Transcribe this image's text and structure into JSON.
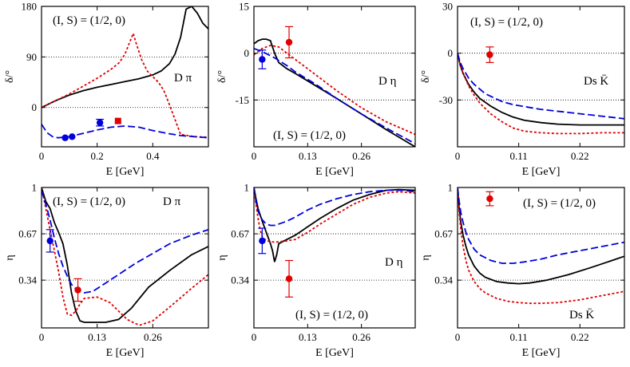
{
  "chart_data": [
    {
      "type": "line",
      "annotation": "(I, S) = (1/2, 0)",
      "channel": "D π",
      "xlabel": "E [GeV]",
      "ylabel": "δ/°",
      "xlim": [
        0,
        0.6
      ],
      "ylim": [
        -70,
        180
      ],
      "xticks": [
        0,
        0.2,
        0.4
      ],
      "yticks": [
        0,
        90,
        180
      ],
      "hlines": [
        0,
        90
      ],
      "series": [
        {
          "color": "#000000",
          "style": "solid",
          "x": [
            0,
            0.05,
            0.1,
            0.15,
            0.2,
            0.25,
            0.3,
            0.35,
            0.4,
            0.43,
            0.46,
            0.48,
            0.5,
            0.52,
            0.54,
            0.56,
            0.58,
            0.6
          ],
          "y": [
            0,
            12,
            22,
            30,
            36,
            41,
            46,
            51,
            58,
            65,
            78,
            95,
            125,
            175,
            180,
            168,
            150,
            140
          ]
        },
        {
          "color": "#e00000",
          "style": "dotted",
          "x": [
            0,
            0.05,
            0.1,
            0.15,
            0.2,
            0.25,
            0.28,
            0.3,
            0.32,
            0.33,
            0.34,
            0.36,
            0.38,
            0.4,
            0.42,
            0.44,
            0.46,
            0.5,
            0.55,
            0.6
          ],
          "y": [
            0,
            12,
            24,
            38,
            52,
            68,
            80,
            95,
            120,
            132,
            115,
            85,
            65,
            55,
            45,
            30,
            5,
            -48,
            -52,
            -53
          ]
        },
        {
          "color": "#0000dd",
          "style": "dashed",
          "x": [
            0,
            0.02,
            0.04,
            0.06,
            0.08,
            0.1,
            0.15,
            0.2,
            0.25,
            0.3,
            0.35,
            0.4,
            0.45,
            0.5,
            0.55,
            0.6
          ],
          "y": [
            -30,
            -45,
            -52,
            -54,
            -53,
            -52,
            -46,
            -40,
            -35,
            -33,
            -35,
            -41,
            -46,
            -50,
            -52,
            -54
          ]
        }
      ],
      "points": [
        {
          "color": "#0000dd",
          "marker": "circle",
          "x": 0.085,
          "y": -54,
          "err": 0
        },
        {
          "color": "#0000dd",
          "marker": "circle",
          "x": 0.11,
          "y": -52,
          "err": 0
        },
        {
          "color": "#0000dd",
          "marker": "circle",
          "x": 0.21,
          "y": -27,
          "err": 6
        },
        {
          "color": "#e00000",
          "marker": "square",
          "x": 0.275,
          "y": -24,
          "err": 0
        }
      ]
    },
    {
      "type": "line",
      "annotation": "(I, S) = (1/2, 0)",
      "channel": "D η",
      "xlabel": "E [GeV]",
      "ylabel": "δ/°",
      "xlim": [
        0,
        0.39
      ],
      "ylim": [
        -30,
        15
      ],
      "xticks": [
        0,
        0.13,
        0.26
      ],
      "yticks": [
        -15,
        0,
        15
      ],
      "hlines": [
        0,
        -15
      ],
      "series": [
        {
          "color": "#000000",
          "style": "solid",
          "x": [
            0,
            0.01,
            0.02,
            0.03,
            0.04,
            0.05,
            0.06,
            0.08,
            0.1,
            0.15,
            0.2,
            0.26,
            0.32,
            0.39
          ],
          "y": [
            3,
            4,
            4.5,
            4.5,
            4,
            0,
            -3,
            -5,
            -6.5,
            -10.5,
            -14.5,
            -19.5,
            -24.5,
            -30
          ]
        },
        {
          "color": "#e00000",
          "style": "dotted",
          "x": [
            0,
            0.02,
            0.04,
            0.06,
            0.08,
            0.1,
            0.15,
            0.2,
            0.26,
            0.32,
            0.39
          ],
          "y": [
            -0.5,
            1.5,
            2.5,
            2,
            0,
            -2,
            -7,
            -12,
            -17.5,
            -22,
            -26
          ]
        },
        {
          "color": "#0000dd",
          "style": "dashed",
          "x": [
            0,
            0.02,
            0.05,
            0.08,
            0.1,
            0.15,
            0.2,
            0.26,
            0.32,
            0.39
          ],
          "y": [
            1.5,
            0.5,
            -1.5,
            -4,
            -6,
            -10,
            -14.5,
            -19.5,
            -24,
            -29
          ]
        }
      ],
      "points": [
        {
          "color": "#0000dd",
          "marker": "circle",
          "x": 0.02,
          "y": -2,
          "err": 3
        },
        {
          "color": "#e00000",
          "marker": "circle",
          "x": 0.085,
          "y": 3.5,
          "err": 5
        }
      ]
    },
    {
      "type": "line",
      "annotation": "(I, S) = (1/2, 0)",
      "channel": "Ds K̄",
      "xlabel": "E [GeV]",
      "ylabel": "δ/°",
      "xlim": [
        0,
        0.3
      ],
      "ylim": [
        -60,
        30
      ],
      "xticks": [
        0,
        0.11,
        0.22
      ],
      "yticks": [
        -30,
        0,
        30
      ],
      "hlines": [
        0,
        -30
      ],
      "series": [
        {
          "color": "#000000",
          "style": "solid",
          "x": [
            0,
            0.005,
            0.01,
            0.02,
            0.03,
            0.04,
            0.06,
            0.08,
            0.1,
            0.12,
            0.15,
            0.18,
            0.22,
            0.26,
            0.3
          ],
          "y": [
            0,
            -8,
            -13,
            -20,
            -25,
            -29,
            -34,
            -38,
            -41,
            -43,
            -44.5,
            -45.5,
            -46,
            -46,
            -46
          ]
        },
        {
          "color": "#e00000",
          "style": "dotted",
          "x": [
            0,
            0.005,
            0.01,
            0.02,
            0.03,
            0.04,
            0.06,
            0.08,
            0.1,
            0.12,
            0.15,
            0.18,
            0.22,
            0.26,
            0.3
          ],
          "y": [
            0,
            -8,
            -13,
            -21,
            -27,
            -32,
            -39,
            -44,
            -48,
            -50,
            -51,
            -51.5,
            -51.5,
            -51,
            -51
          ]
        },
        {
          "color": "#0000dd",
          "style": "dashed",
          "x": [
            0,
            0.005,
            0.01,
            0.02,
            0.03,
            0.05,
            0.08,
            0.1,
            0.15,
            0.2,
            0.25,
            0.3
          ],
          "y": [
            0,
            -6,
            -10,
            -16,
            -20,
            -26,
            -31,
            -33,
            -36,
            -38,
            -40,
            -42
          ]
        }
      ],
      "points": [
        {
          "color": "#e00000",
          "marker": "circle",
          "x": 0.058,
          "y": -1,
          "err": 5
        }
      ]
    },
    {
      "type": "line",
      "annotation": "(I, S) = (1/2, 0)",
      "channel": "D π",
      "xlabel": "E [GeV]",
      "ylabel": "η",
      "xlim": [
        0,
        0.39
      ],
      "ylim": [
        0,
        1
      ],
      "xticks": [
        0,
        0.13,
        0.26
      ],
      "yticks": [
        0.34,
        0.67,
        1
      ],
      "ytick_labels": [
        "0.34",
        "0.67",
        "1"
      ],
      "hlines": [
        0.34,
        0.67
      ],
      "series": [
        {
          "color": "#000000",
          "style": "solid",
          "x": [
            0,
            0.005,
            0.01,
            0.02,
            0.03,
            0.04,
            0.05,
            0.06,
            0.07,
            0.08,
            0.09,
            0.1,
            0.12,
            0.15,
            0.18,
            0.21,
            0.25,
            0.3,
            0.35,
            0.39
          ],
          "y": [
            1,
            0.95,
            0.9,
            0.85,
            0.75,
            0.68,
            0.6,
            0.45,
            0.25,
            0.12,
            0.05,
            0.04,
            0.04,
            0.04,
            0.06,
            0.14,
            0.29,
            0.41,
            0.52,
            0.58
          ]
        },
        {
          "color": "#e00000",
          "style": "dotted",
          "x": [
            0,
            0.01,
            0.02,
            0.03,
            0.04,
            0.05,
            0.06,
            0.07,
            0.08,
            0.09,
            0.1,
            0.13,
            0.16,
            0.18,
            0.2,
            0.22,
            0.23,
            0.26,
            0.3,
            0.35,
            0.39
          ],
          "y": [
            1,
            0.85,
            0.7,
            0.55,
            0.4,
            0.22,
            0.1,
            0.09,
            0.12,
            0.17,
            0.21,
            0.22,
            0.18,
            0.12,
            0.06,
            0.03,
            0.02,
            0.05,
            0.15,
            0.28,
            0.38
          ]
        },
        {
          "color": "#0000dd",
          "style": "dashed",
          "x": [
            0,
            0.01,
            0.02,
            0.03,
            0.04,
            0.05,
            0.06,
            0.07,
            0.08,
            0.09,
            0.1,
            0.12,
            0.15,
            0.18,
            0.22,
            0.26,
            0.3,
            0.35,
            0.39
          ],
          "y": [
            0.98,
            0.88,
            0.77,
            0.64,
            0.53,
            0.44,
            0.37,
            0.31,
            0.28,
            0.26,
            0.25,
            0.26,
            0.32,
            0.38,
            0.46,
            0.53,
            0.6,
            0.66,
            0.7
          ]
        }
      ],
      "points": [
        {
          "color": "#0000dd",
          "marker": "circle",
          "x": 0.02,
          "y": 0.62,
          "err": 0.08
        },
        {
          "color": "#e00000",
          "marker": "circle",
          "x": 0.085,
          "y": 0.27,
          "err": 0.08
        }
      ]
    },
    {
      "type": "line",
      "annotation": "(I, S) = (1/2, 0)",
      "channel": "D η",
      "xlabel": "E [GeV]",
      "ylabel": "η",
      "xlim": [
        0,
        0.39
      ],
      "ylim": [
        0,
        1
      ],
      "xticks": [
        0,
        0.13,
        0.26
      ],
      "yticks": [
        0.34,
        0.67,
        1
      ],
      "ytick_labels": [
        "0.34",
        "0.67",
        "1"
      ],
      "hlines": [
        0.34,
        0.67
      ],
      "series": [
        {
          "color": "#000000",
          "style": "solid",
          "x": [
            0,
            0.005,
            0.01,
            0.02,
            0.03,
            0.04,
            0.045,
            0.05,
            0.055,
            0.06,
            0.08,
            0.1,
            0.13,
            0.16,
            0.2,
            0.24,
            0.28,
            0.32,
            0.35,
            0.39
          ],
          "y": [
            1,
            0.92,
            0.85,
            0.76,
            0.68,
            0.6,
            0.55,
            0.47,
            0.52,
            0.6,
            0.63,
            0.66,
            0.72,
            0.78,
            0.85,
            0.91,
            0.95,
            0.98,
            0.985,
            0.98
          ]
        },
        {
          "color": "#e00000",
          "style": "dotted",
          "x": [
            0,
            0.005,
            0.01,
            0.015,
            0.02,
            0.03,
            0.05,
            0.08,
            0.1,
            0.13,
            0.16,
            0.2,
            0.24,
            0.28,
            0.32,
            0.35,
            0.39
          ],
          "y": [
            1,
            0.88,
            0.78,
            0.7,
            0.65,
            0.62,
            0.61,
            0.62,
            0.63,
            0.68,
            0.74,
            0.81,
            0.88,
            0.93,
            0.96,
            0.97,
            0.96
          ]
        },
        {
          "color": "#0000dd",
          "style": "dashed",
          "x": [
            0,
            0.005,
            0.01,
            0.02,
            0.03,
            0.04,
            0.05,
            0.06,
            0.08,
            0.1,
            0.13,
            0.16,
            0.2,
            0.24,
            0.28,
            0.32,
            0.36,
            0.39
          ],
          "y": [
            1,
            0.9,
            0.83,
            0.77,
            0.74,
            0.73,
            0.73,
            0.74,
            0.76,
            0.79,
            0.84,
            0.88,
            0.92,
            0.95,
            0.97,
            0.98,
            0.98,
            0.97
          ]
        }
      ],
      "points": [
        {
          "color": "#0000dd",
          "marker": "circle",
          "x": 0.02,
          "y": 0.62,
          "err": 0.09
        },
        {
          "color": "#e00000",
          "marker": "circle",
          "x": 0.085,
          "y": 0.35,
          "err": 0.13
        }
      ]
    },
    {
      "type": "line",
      "annotation": "(I, S) = (1/2, 0)",
      "channel": "Ds K̄",
      "xlabel": "E [GeV]",
      "ylabel": "η",
      "xlim": [
        0,
        0.3
      ],
      "ylim": [
        0,
        1
      ],
      "xticks": [
        0,
        0.11,
        0.22
      ],
      "yticks": [
        0.34,
        0.67,
        1
      ],
      "ytick_labels": [
        "0.34",
        "0.67",
        "1"
      ],
      "hlines": [
        0.34,
        0.67
      ],
      "series": [
        {
          "color": "#000000",
          "style": "solid",
          "x": [
            0,
            0.003,
            0.006,
            0.01,
            0.015,
            0.02,
            0.03,
            0.04,
            0.05,
            0.07,
            0.09,
            0.11,
            0.13,
            0.16,
            0.2,
            0.24,
            0.27,
            0.3
          ],
          "y": [
            1,
            0.85,
            0.75,
            0.66,
            0.58,
            0.52,
            0.44,
            0.39,
            0.36,
            0.33,
            0.32,
            0.315,
            0.32,
            0.34,
            0.38,
            0.43,
            0.47,
            0.51
          ]
        },
        {
          "color": "#e00000",
          "style": "dotted",
          "x": [
            0,
            0.003,
            0.006,
            0.01,
            0.015,
            0.02,
            0.03,
            0.04,
            0.05,
            0.07,
            0.09,
            0.11,
            0.13,
            0.15,
            0.18,
            0.22,
            0.26,
            0.3
          ],
          "y": [
            1,
            0.82,
            0.7,
            0.58,
            0.48,
            0.41,
            0.33,
            0.28,
            0.25,
            0.21,
            0.19,
            0.18,
            0.175,
            0.175,
            0.18,
            0.2,
            0.23,
            0.26
          ]
        },
        {
          "color": "#0000dd",
          "style": "dashed",
          "x": [
            0,
            0.003,
            0.006,
            0.01,
            0.015,
            0.02,
            0.03,
            0.04,
            0.06,
            0.08,
            0.1,
            0.12,
            0.15,
            0.18,
            0.22,
            0.26,
            0.3
          ],
          "y": [
            1,
            0.9,
            0.82,
            0.75,
            0.68,
            0.63,
            0.56,
            0.52,
            0.48,
            0.46,
            0.46,
            0.47,
            0.49,
            0.52,
            0.55,
            0.58,
            0.61
          ]
        }
      ],
      "points": [
        {
          "color": "#e00000",
          "marker": "circle",
          "x": 0.058,
          "y": 0.92,
          "err": 0.05
        }
      ]
    }
  ]
}
